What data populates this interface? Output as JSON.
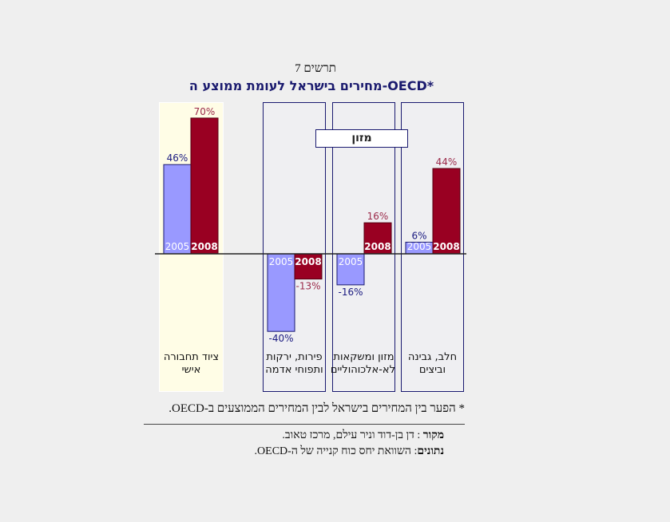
{
  "chart_data": {
    "type": "bar",
    "subtitle": "תרשים 7",
    "title": "מחירים בישראל לעומת ממוצע ה-OECD*",
    "group_label": "מזון",
    "categories": [
      "ציוד תחבורה אישי",
      "פירות, ירקות ותפוחי אדמה",
      "מזון ומשקאות לא-אלכוהוליים",
      "חלב, גבינה וביצים"
    ],
    "series": [
      {
        "name": "2005",
        "color": "#9999ff",
        "values": [
          46,
          -40,
          -16,
          6
        ]
      },
      {
        "name": "2008",
        "color": "#990022",
        "values": [
          70,
          -13,
          16,
          44
        ]
      }
    ],
    "value_labels": {
      "2005": [
        "46%",
        "-40%",
        "-16%",
        "6%"
      ],
      "2008": [
        "70%",
        "-13%",
        "16%",
        "44%"
      ]
    },
    "panel_colors": [
      "#fffde6",
      "#efeff2",
      "#efeff2",
      "#efeff2"
    ]
  },
  "footnote": "* הפער בין המחירים בישראל לבין המחירים הממוצעים ב-OECD.",
  "source": {
    "label": "מקור",
    "text": ": דן בן-דוד וניר עילם, מרכז טאוב."
  },
  "data_note": {
    "label": "נתונים",
    "text": ": השוואת יחס כוח קנייה של ה-OECD."
  }
}
